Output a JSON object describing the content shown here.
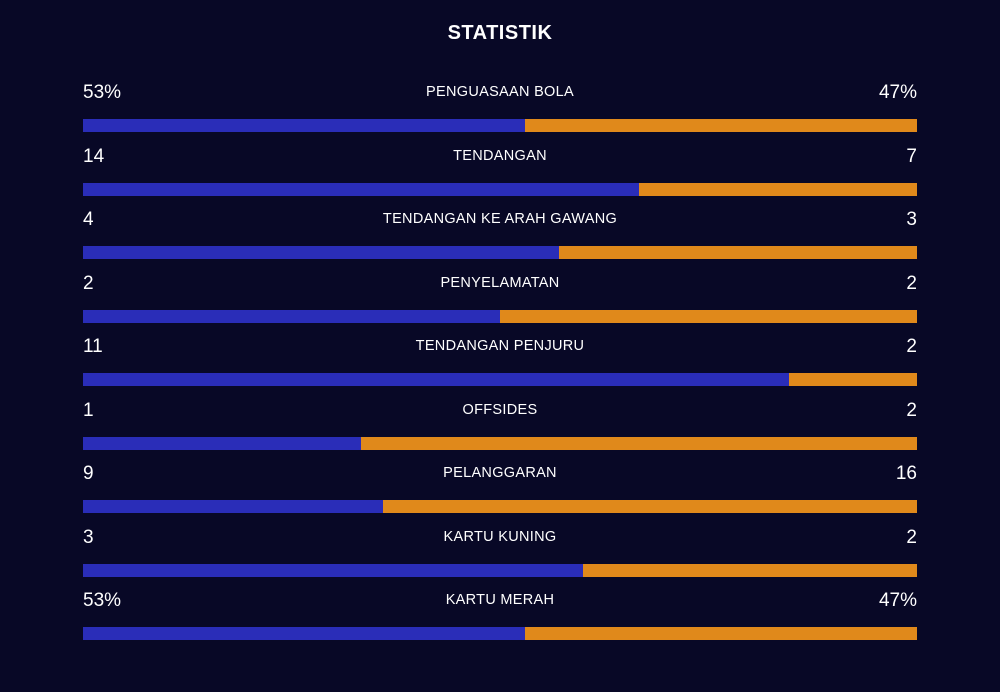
{
  "title": "STATISTIK",
  "colors": {
    "background": "#080826",
    "home_bar": "#2a2db8",
    "away_bar": "#e0891b",
    "text": "#ffffff"
  },
  "stats": [
    {
      "label": "PENGUASAAN BOLA",
      "home": "53%",
      "away": "47%",
      "home_share": 0.53
    },
    {
      "label": "TENDANGAN",
      "home": "14",
      "away": "7",
      "home_share": 0.667
    },
    {
      "label": "TENDANGAN KE ARAH GAWANG",
      "home": "4",
      "away": "3",
      "home_share": 0.571
    },
    {
      "label": "PENYELAMATAN",
      "home": "2",
      "away": "2",
      "home_share": 0.5
    },
    {
      "label": "TENDANGAN PENJURU",
      "home": "11",
      "away": "2",
      "home_share": 0.846
    },
    {
      "label": "OFFSIDES",
      "home": "1",
      "away": "2",
      "home_share": 0.333
    },
    {
      "label": "PELANGGARAN",
      "home": "9",
      "away": "16",
      "home_share": 0.36
    },
    {
      "label": "KARTU KUNING",
      "home": "3",
      "away": "2",
      "home_share": 0.6
    },
    {
      "label": "KARTU MERAH",
      "home": "53%",
      "away": "47%",
      "home_share": 0.53
    }
  ]
}
